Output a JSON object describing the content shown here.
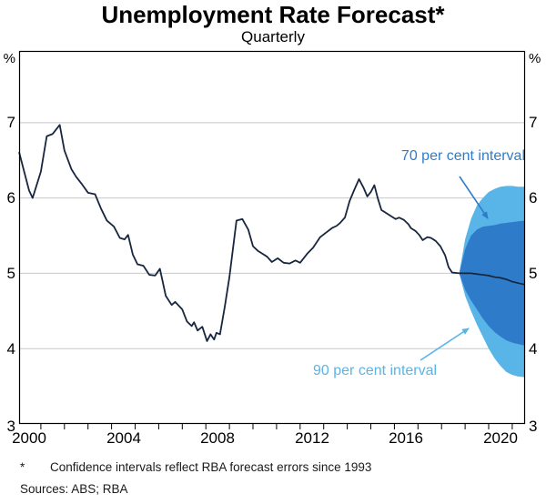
{
  "title": "Unemployment Rate Forecast*",
  "subtitle": "Quarterly",
  "y_axis": {
    "unit": "%",
    "labels": [
      "7",
      "6",
      "5",
      "4",
      "3"
    ]
  },
  "x_axis": {
    "labels": [
      "2000",
      "2004",
      "2008",
      "2012",
      "2016",
      "2020"
    ]
  },
  "annotations": {
    "interval70": "70 per cent interval",
    "interval90": "90 per cent interval"
  },
  "footnote": {
    "marker": "*",
    "text": "Confidence intervals reflect RBA forecast errors since 1993"
  },
  "sources": "Sources: ABS; RBA",
  "colors": {
    "line": "#17263e",
    "band70": "#2e7cc9",
    "band90": "#59b5e7",
    "annotation70": "#2e7cc9",
    "annotation90": "#59b5e7",
    "gridline": "#c8c8c8",
    "axis": "#000000"
  },
  "chart_data": {
    "type": "line",
    "title": "Unemployment Rate Forecast*",
    "subtitle": "Quarterly",
    "ylabel": "%",
    "xlim": [
      2000.077,
      2021.544
    ],
    "ylim": [
      3,
      7.952
    ],
    "y_ticks": [
      3,
      4,
      5,
      6,
      7
    ],
    "gridlines": [
      4,
      5,
      6,
      7
    ],
    "x_tick_years": [
      2001,
      2002,
      2003,
      2004,
      2005,
      2006,
      2007,
      2008,
      2009,
      2010,
      2011,
      2012,
      2013,
      2014,
      2015,
      2016,
      2017,
      2018,
      2019,
      2020,
      2021
    ],
    "x_label_positions": [
      2000.5,
      2004.5,
      2008.5,
      2012.5,
      2016.5,
      2020.5
    ],
    "history": {
      "x": [
        2000.077,
        2000.25,
        2000.5,
        2000.65,
        2001.0,
        2001.25,
        2001.5,
        2001.8,
        2002.0,
        2002.3,
        2002.5,
        2002.75,
        2003.0,
        2003.3,
        2003.55,
        2003.8,
        2004.1,
        2004.35,
        2004.55,
        2004.7,
        2004.9,
        2005.1,
        2005.35,
        2005.6,
        2005.85,
        2006.05,
        2006.3,
        2006.55,
        2006.7,
        2007.0,
        2007.2,
        2007.4,
        2007.5,
        2007.65,
        2007.85,
        2008.05,
        2008.2,
        2008.35,
        2008.45,
        2008.6,
        2008.8,
        2009.0,
        2009.3,
        2009.55,
        2009.8,
        2010.0,
        2010.2,
        2010.4,
        2010.6,
        2010.8,
        2011.05,
        2011.3,
        2011.55,
        2011.8,
        2012.0,
        2012.3,
        2012.55,
        2012.85,
        2013.1,
        2013.35,
        2013.55,
        2013.7,
        2013.9,
        2014.1,
        2014.3,
        2014.5,
        2014.7,
        2014.85,
        2015.0,
        2015.15,
        2015.3,
        2015.45,
        2015.65,
        2015.85,
        2016.05,
        2016.2,
        2016.4,
        2016.6,
        2016.7,
        2016.9,
        2017.05,
        2017.2,
        2017.4,
        2017.55,
        2017.75,
        2017.95,
        2018.15,
        2018.3,
        2018.45,
        2018.75
      ],
      "y": [
        6.61,
        6.4,
        6.1,
        6.0,
        6.35,
        6.82,
        6.85,
        6.97,
        6.63,
        6.38,
        6.28,
        6.18,
        6.07,
        6.05,
        5.86,
        5.7,
        5.62,
        5.47,
        5.45,
        5.51,
        5.25,
        5.12,
        5.1,
        4.98,
        4.97,
        5.06,
        4.7,
        4.58,
        4.62,
        4.52,
        4.36,
        4.3,
        4.35,
        4.24,
        4.29,
        4.1,
        4.19,
        4.12,
        4.21,
        4.19,
        4.55,
        4.95,
        5.7,
        5.72,
        5.58,
        5.36,
        5.3,
        5.26,
        5.22,
        5.15,
        5.2,
        5.14,
        5.13,
        5.17,
        5.14,
        5.26,
        5.34,
        5.48,
        5.54,
        5.6,
        5.63,
        5.67,
        5.74,
        5.96,
        6.11,
        6.25,
        6.13,
        6.02,
        6.08,
        6.17,
        5.99,
        5.84,
        5.8,
        5.76,
        5.72,
        5.74,
        5.71,
        5.65,
        5.6,
        5.56,
        5.51,
        5.44,
        5.48,
        5.47,
        5.43,
        5.36,
        5.24,
        5.08,
        5.01,
        5.0
      ]
    },
    "forecast": {
      "x": [
        2018.75,
        2019.0,
        2019.25,
        2019.5,
        2019.75,
        2020.0,
        2020.25,
        2020.5,
        2020.75,
        2021.0,
        2021.25,
        2021.54
      ],
      "median": [
        5.0,
        5.0,
        5.0,
        4.99,
        4.98,
        4.97,
        4.95,
        4.94,
        4.92,
        4.89,
        4.87,
        4.85
      ],
      "interval70": {
        "label": "70 per cent interval",
        "upper": [
          5.0,
          5.32,
          5.5,
          5.58,
          5.62,
          5.63,
          5.64,
          5.66,
          5.67,
          5.68,
          5.69,
          5.7
        ],
        "lower": [
          5.0,
          4.78,
          4.64,
          4.52,
          4.4,
          4.3,
          4.22,
          4.16,
          4.11,
          4.08,
          4.06,
          4.04
        ]
      },
      "interval90": {
        "label": "90 per cent interval",
        "upper": [
          5.0,
          5.45,
          5.72,
          5.9,
          6.0,
          6.08,
          6.12,
          6.15,
          6.16,
          6.16,
          6.15,
          6.15
        ],
        "lower": [
          5.0,
          4.7,
          4.5,
          4.32,
          4.16,
          4.0,
          3.87,
          3.77,
          3.69,
          3.65,
          3.63,
          3.62
        ]
      }
    }
  }
}
